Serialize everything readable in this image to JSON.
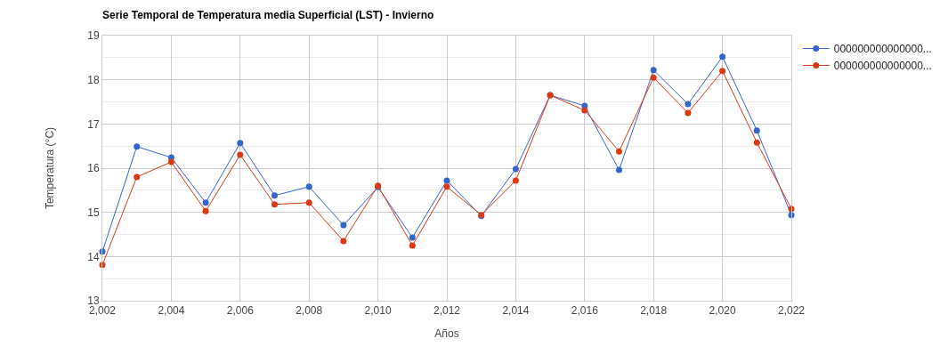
{
  "chart_data": {
    "type": "line",
    "title": "Serie Temporal de Temperatura media Superficial (LST) - Invierno",
    "xlabel": "Años",
    "ylabel": "Temperatura (°C)",
    "x": [
      2002,
      2003,
      2004,
      2005,
      2006,
      2007,
      2008,
      2009,
      2010,
      2011,
      2012,
      2013,
      2014,
      2015,
      2016,
      2017,
      2018,
      2019,
      2020,
      2021,
      2022
    ],
    "series": [
      {
        "name": "000000000000000...",
        "color": "#3366cc",
        "values": [
          14.11,
          16.49,
          16.24,
          15.22,
          16.57,
          15.38,
          15.58,
          14.71,
          15.57,
          14.43,
          15.72,
          14.92,
          15.98,
          17.65,
          17.41,
          15.96,
          18.22,
          17.45,
          18.52,
          16.85,
          14.94
        ]
      },
      {
        "name": "000000000000000...",
        "color": "#dc3912",
        "values": [
          13.81,
          15.8,
          16.14,
          15.03,
          16.3,
          15.18,
          15.22,
          14.35,
          15.6,
          14.25,
          15.58,
          14.94,
          15.72,
          17.65,
          17.31,
          16.38,
          18.05,
          17.25,
          18.2,
          16.58,
          15.08
        ]
      }
    ],
    "xlim": [
      2002,
      2022
    ],
    "xticks": [
      {
        "value": 2002,
        "label": "2,002"
      },
      {
        "value": 2004,
        "label": "2,004"
      },
      {
        "value": 2006,
        "label": "2,006"
      },
      {
        "value": 2008,
        "label": "2,008"
      },
      {
        "value": 2010,
        "label": "2,010"
      },
      {
        "value": 2012,
        "label": "2,012"
      },
      {
        "value": 2014,
        "label": "2,014"
      },
      {
        "value": 2016,
        "label": "2,016"
      },
      {
        "value": 2018,
        "label": "2,018"
      },
      {
        "value": 2020,
        "label": "2,020"
      },
      {
        "value": 2022,
        "label": "2,022"
      }
    ],
    "ylim": [
      13,
      19
    ],
    "yticks": [
      13,
      14,
      15,
      16,
      17,
      18,
      19
    ],
    "grid": true,
    "legend": "top right",
    "marker": "circle",
    "line_style": "solid"
  }
}
